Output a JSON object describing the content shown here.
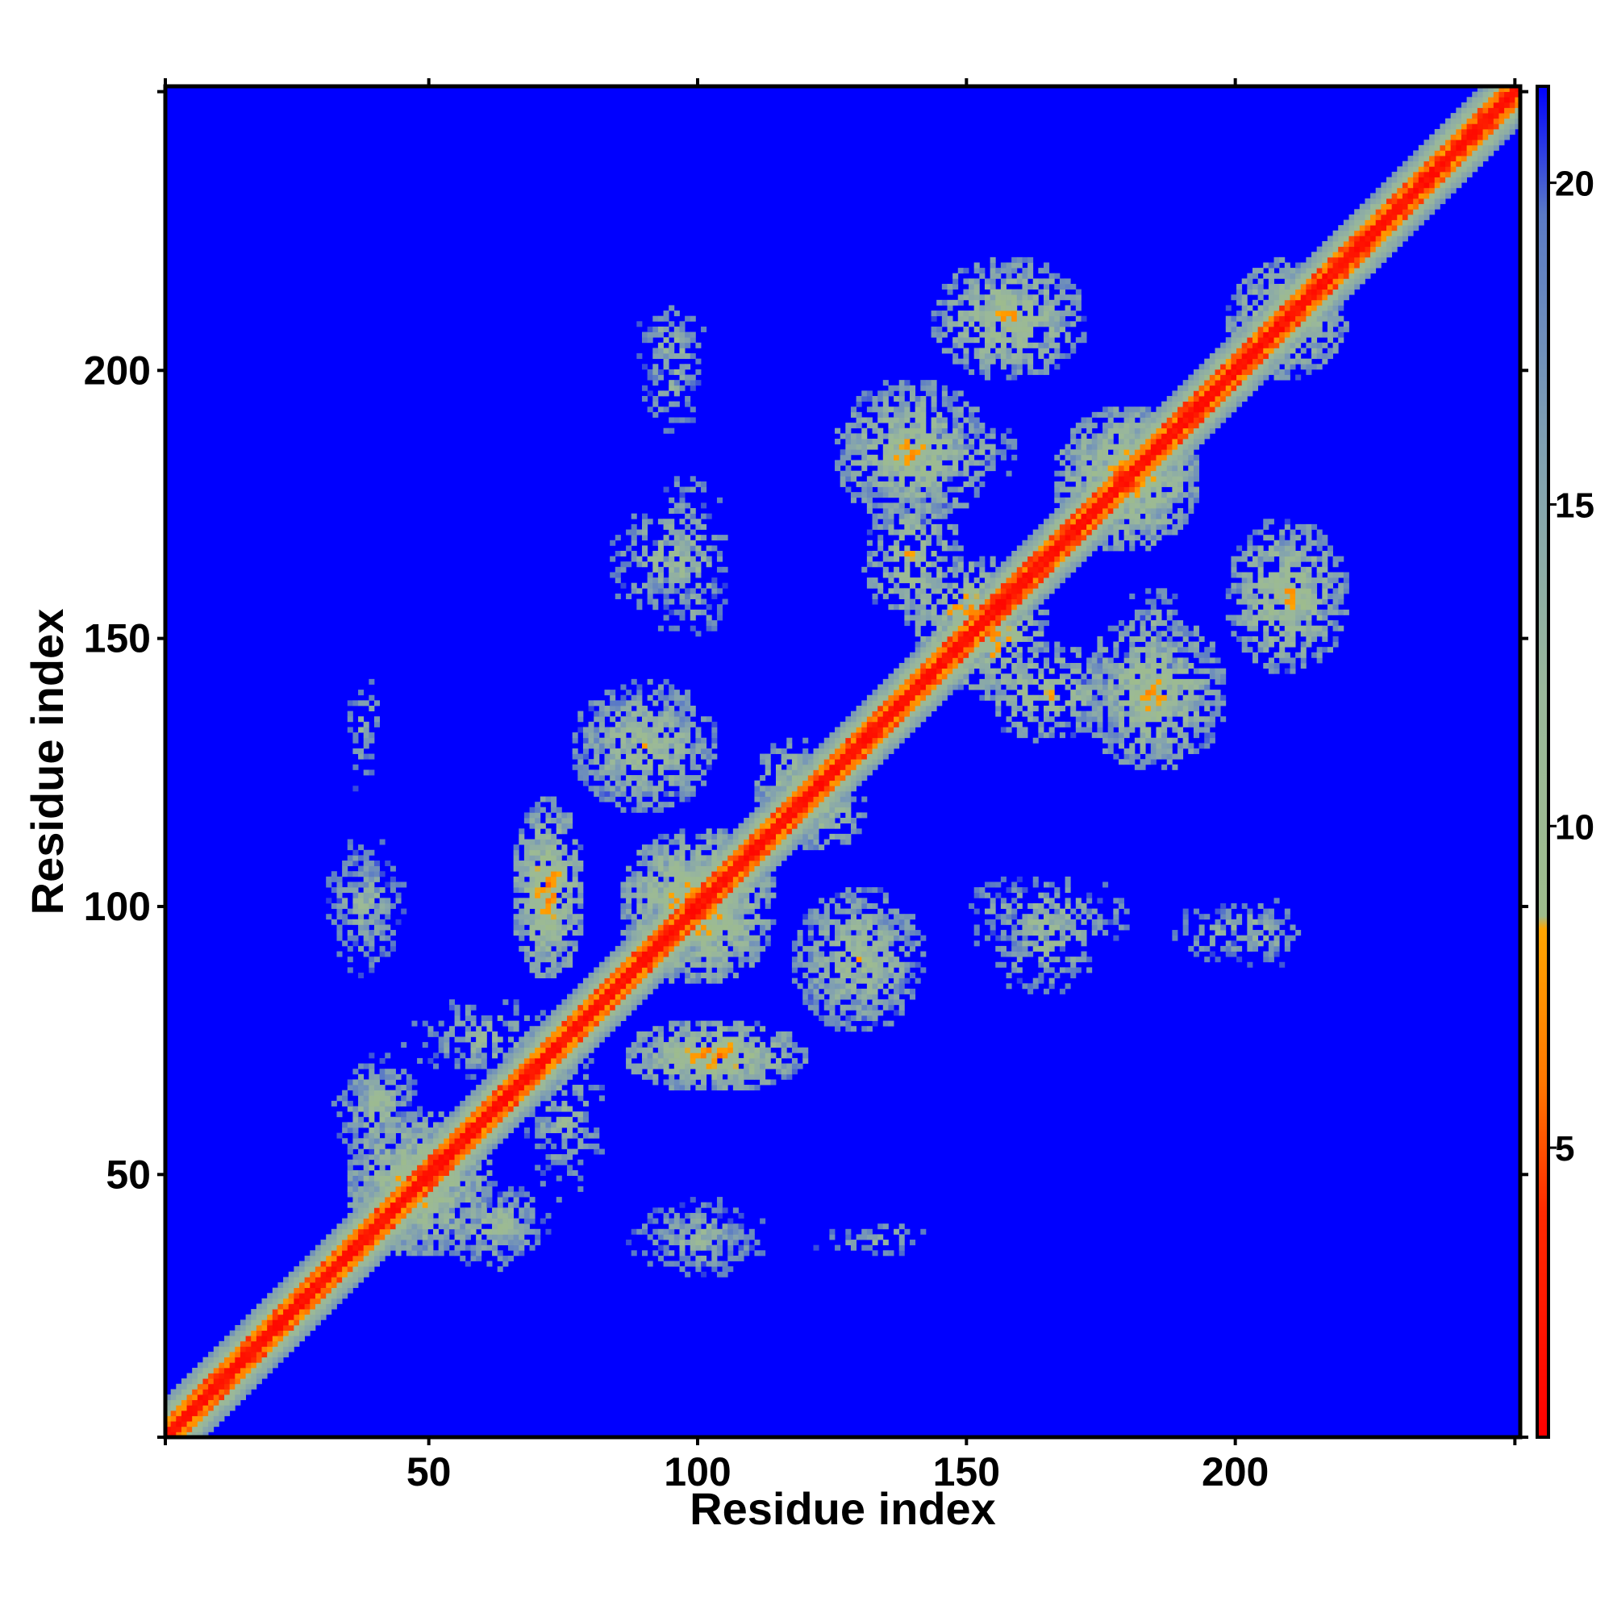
{
  "chart_data": {
    "type": "heatmap",
    "title": "",
    "xlabel": "Residue index",
    "ylabel": "Residue index",
    "xlim": [
      1,
      253
    ],
    "ylim": [
      1,
      253
    ],
    "n_residues": 253,
    "x_ticks": [
      50,
      100,
      150,
      200
    ],
    "y_ticks": [
      50,
      100,
      150,
      200
    ],
    "colorbar": {
      "range": [
        0.5,
        21.5
      ],
      "ticks": [
        5,
        10,
        15,
        20
      ],
      "stops": [
        {
          "value": 0.5,
          "color": "#ff0000"
        },
        {
          "value": 4.0,
          "color": "#ff2a00"
        },
        {
          "value": 6.0,
          "color": "#ff7700"
        },
        {
          "value": 8.4,
          "color": "#ffa500"
        },
        {
          "value": 8.6,
          "color": "#9ebc8c"
        },
        {
          "value": 12.0,
          "color": "#9ab89a"
        },
        {
          "value": 16.0,
          "color": "#7f9fb2"
        },
        {
          "value": 19.5,
          "color": "#5a7ac6"
        },
        {
          "value": 21.5,
          "color": "#0000ff"
        }
      ]
    },
    "background_color": "#0000ff",
    "diagonal_band": {
      "core_halfwidth": 1.5,
      "warm_halfwidth": 3.5,
      "band_halfwidth": 7.5
    },
    "contact_regions": [
      {
        "x": 48,
        "y": 48,
        "rx": 12,
        "ry": 12,
        "density": 0.75,
        "min": 5
      },
      {
        "x": 40,
        "y": 62,
        "rx": 7,
        "ry": 9,
        "density": 0.55,
        "min": 8
      },
      {
        "x": 62,
        "y": 40,
        "rx": 9,
        "ry": 7,
        "density": 0.55,
        "min": 8
      },
      {
        "x": 100,
        "y": 100,
        "rx": 13,
        "ry": 13,
        "density": 0.8,
        "min": 5
      },
      {
        "x": 103,
        "y": 72,
        "rx": 15,
        "ry": 6,
        "density": 0.7,
        "min": 5
      },
      {
        "x": 72,
        "y": 103,
        "rx": 6,
        "ry": 15,
        "density": 0.7,
        "min": 5
      },
      {
        "x": 90,
        "y": 130,
        "rx": 12,
        "ry": 11,
        "density": 0.6,
        "min": 7
      },
      {
        "x": 130,
        "y": 90,
        "rx": 11,
        "ry": 12,
        "density": 0.6,
        "min": 7
      },
      {
        "x": 93,
        "y": 165,
        "rx": 9,
        "ry": 10,
        "density": 0.5,
        "min": 8
      },
      {
        "x": 95,
        "y": 205,
        "rx": 6,
        "ry": 8,
        "density": 0.4,
        "min": 9
      },
      {
        "x": 38,
        "y": 100,
        "rx": 7,
        "ry": 9,
        "density": 0.45,
        "min": 9
      },
      {
        "x": 38,
        "y": 135,
        "rx": 3,
        "ry": 8,
        "density": 0.35,
        "min": 10
      },
      {
        "x": 100,
        "y": 38,
        "rx": 12,
        "ry": 6,
        "density": 0.5,
        "min": 9
      },
      {
        "x": 133,
        "y": 37,
        "rx": 10,
        "ry": 3,
        "density": 0.35,
        "min": 10
      },
      {
        "x": 165,
        "y": 98,
        "rx": 15,
        "ry": 7,
        "density": 0.5,
        "min": 8
      },
      {
        "x": 200,
        "y": 95,
        "rx": 12,
        "ry": 5,
        "density": 0.4,
        "min": 9
      },
      {
        "x": 180,
        "y": 180,
        "rx": 12,
        "ry": 12,
        "density": 0.8,
        "min": 5
      },
      {
        "x": 155,
        "y": 150,
        "rx": 10,
        "ry": 10,
        "density": 0.7,
        "min": 5
      },
      {
        "x": 140,
        "y": 185,
        "rx": 13,
        "ry": 12,
        "density": 0.6,
        "min": 6
      },
      {
        "x": 185,
        "y": 140,
        "rx": 12,
        "ry": 13,
        "density": 0.6,
        "min": 6
      },
      {
        "x": 158,
        "y": 210,
        "rx": 13,
        "ry": 10,
        "density": 0.55,
        "min": 6
      },
      {
        "x": 210,
        "y": 158,
        "rx": 10,
        "ry": 13,
        "density": 0.55,
        "min": 6
      },
      {
        "x": 165,
        "y": 140,
        "rx": 12,
        "ry": 8,
        "density": 0.6,
        "min": 6
      },
      {
        "x": 210,
        "y": 210,
        "rx": 10,
        "ry": 10,
        "density": 0.65,
        "min": 6
      },
      {
        "x": 123,
        "y": 118,
        "rx": 8,
        "ry": 8,
        "density": 0.6,
        "min": 7
      },
      {
        "x": 60,
        "y": 75,
        "rx": 14,
        "ry": 7,
        "density": 0.45,
        "min": 9
      },
      {
        "x": 150,
        "y": 185,
        "rx": 10,
        "ry": 6,
        "density": 0.4,
        "min": 9
      }
    ]
  }
}
